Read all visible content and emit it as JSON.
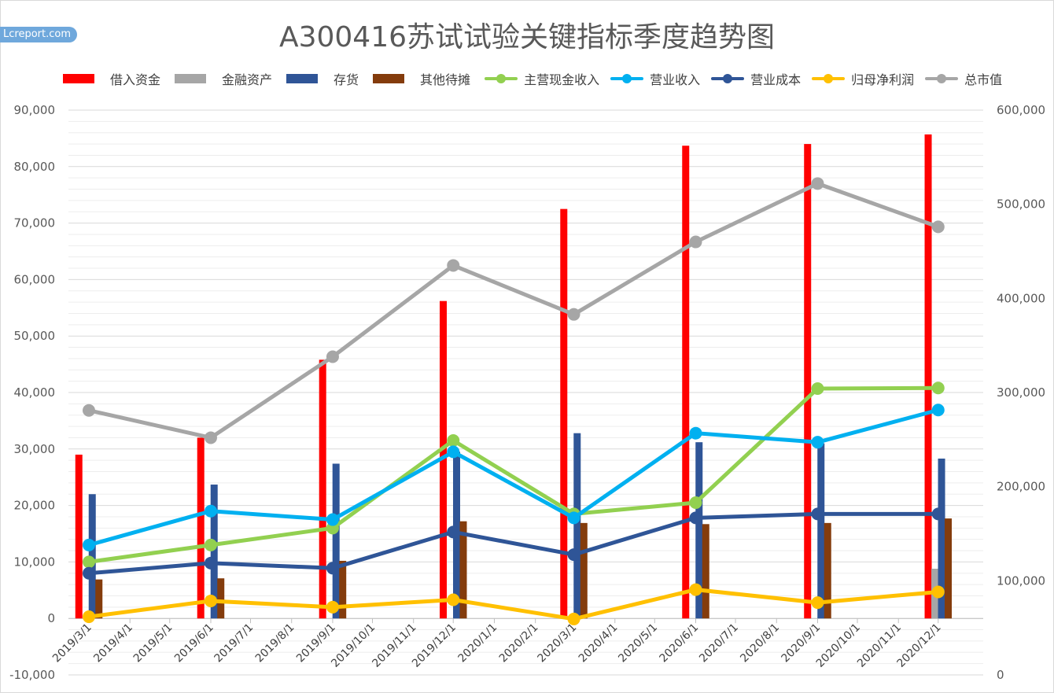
{
  "watermark": "Lcreport.com",
  "chart_data": {
    "type": "bar",
    "title": "A300416苏试试验关键指标季度趋势图",
    "left_axis": {
      "ylim": [
        -10000,
        90000
      ],
      "step": 10000,
      "ticks": [
        "-10,000",
        "0",
        "10,000",
        "20,000",
        "30,000",
        "40,000",
        "50,000",
        "60,000",
        "70,000",
        "80,000",
        "90,000"
      ]
    },
    "right_axis": {
      "ylim": [
        0,
        600000
      ],
      "step": 100000,
      "ticks": [
        "0",
        "100,000",
        "200,000",
        "300,000",
        "400,000",
        "500,000",
        "600,000"
      ]
    },
    "x_ticks": [
      "2019/3/1",
      "2019/4/1",
      "2019/5/1",
      "2019/6/1",
      "2019/7/1",
      "2019/8/1",
      "2019/9/1",
      "2019/10/1",
      "2019/11/1",
      "2019/12/1",
      "2020/1/1",
      "2020/2/1",
      "2020/3/1",
      "2020/4/1",
      "2020/5/1",
      "2020/6/1",
      "2020/7/1",
      "2020/8/1",
      "2020/9/1",
      "2020/10/1",
      "2020/11/1",
      "2020/12/1"
    ],
    "dates": [
      "2019/3/1",
      "2019/6/1",
      "2019/9/1",
      "2019/12/1",
      "2020/3/1",
      "2020/6/1",
      "2020/9/1",
      "2020/12/1"
    ],
    "gridlines": true,
    "legend_position": "top",
    "series": [
      {
        "name": "借入资金",
        "kind": "bar",
        "color": "#ff0000",
        "values": [
          29000,
          32000,
          45800,
          56200,
          72500,
          83700,
          84000,
          85700
        ]
      },
      {
        "name": "金融资产",
        "kind": "bar",
        "color": "#a6a6a6",
        "values": [
          0,
          0,
          0,
          0,
          0,
          0,
          0,
          8800
        ]
      },
      {
        "name": "存货",
        "kind": "bar",
        "color": "#2f5597",
        "values": [
          22000,
          23700,
          27400,
          29500,
          32800,
          31200,
          31000,
          28300
        ]
      },
      {
        "name": "其他待摊",
        "kind": "bar",
        "color": "#843c0c",
        "values": [
          6900,
          7100,
          10200,
          17200,
          16900,
          16700,
          16900,
          17700
        ]
      },
      {
        "name": "主营现金收入",
        "kind": "line",
        "axis": "left",
        "color": "#92d050",
        "values": [
          10000,
          13000,
          16000,
          31500,
          18500,
          20500,
          40700,
          40800
        ]
      },
      {
        "name": "营业收入",
        "kind": "line",
        "axis": "left",
        "color": "#00b0f0",
        "values": [
          13000,
          19000,
          17500,
          29500,
          17800,
          32800,
          31200,
          36900
        ]
      },
      {
        "name": "营业成本",
        "kind": "line",
        "axis": "left",
        "color": "#2f5597",
        "values": [
          8000,
          9800,
          8900,
          15300,
          11300,
          17800,
          18500,
          18500
        ]
      },
      {
        "name": "归母净利润",
        "kind": "line",
        "axis": "left",
        "color": "#ffc000",
        "values": [
          300,
          3100,
          2000,
          3300,
          -100,
          5100,
          2800,
          4700
        ]
      },
      {
        "name": "总市值",
        "kind": "line",
        "axis": "right",
        "color": "#a6a6a6",
        "values": [
          281000,
          252000,
          338000,
          435000,
          383000,
          460000,
          522000,
          476000
        ]
      }
    ]
  }
}
